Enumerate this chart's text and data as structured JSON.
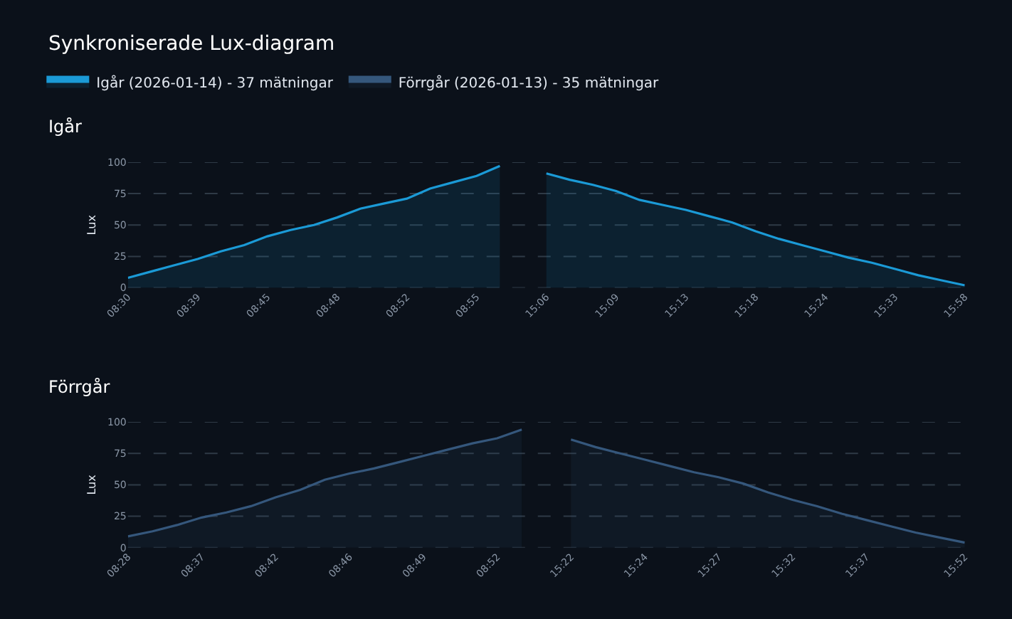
{
  "chart_data": [
    {
      "type": "area",
      "title": "Synkroniserade Lux-diagram",
      "subtitle": "Igår",
      "ylabel": "Lux",
      "categories": [
        "08:30",
        null,
        null,
        "08:39",
        null,
        null,
        "08:45",
        null,
        null,
        "08:48",
        null,
        null,
        "08:52",
        null,
        null,
        "08:55",
        null,
        null,
        "15:06",
        null,
        null,
        "15:09",
        null,
        null,
        "15:13",
        null,
        null,
        "15:18",
        null,
        null,
        "15:24",
        null,
        null,
        "15:33",
        null,
        null,
        "15:58"
      ],
      "series": [
        {
          "name": "Igår (2026-01-14) - 37 mätningar",
          "color": "#1b9ad6",
          "values": [
            8,
            13,
            18,
            23,
            29,
            34,
            41,
            46,
            50,
            56,
            63,
            67,
            71,
            79,
            84,
            89,
            97,
            null,
            91,
            86,
            82,
            77,
            70,
            66,
            62,
            57,
            52,
            45,
            39,
            34,
            29,
            24,
            20,
            15,
            10,
            6,
            2
          ]
        }
      ],
      "ylim": [
        0,
        100
      ],
      "yticks": [
        0,
        25,
        50,
        75,
        100
      ],
      "grid": "y",
      "legend": "top left",
      "line_style": "solid"
    },
    {
      "type": "area",
      "title": "Förrgår",
      "ylabel": "Lux",
      "categories": [
        "08:28",
        null,
        null,
        "08:37",
        null,
        null,
        "08:42",
        null,
        null,
        "08:46",
        null,
        null,
        "08:49",
        null,
        null,
        "08:52",
        null,
        null,
        "15:22",
        null,
        null,
        "15:24",
        null,
        null,
        "15:27",
        null,
        null,
        "15:32",
        null,
        null,
        "15:37",
        null,
        null,
        null,
        "15:52"
      ],
      "series": [
        {
          "name": "Förrgår (2026-01-13) - 35 mätningar",
          "color": "#35577c",
          "values": [
            9,
            13,
            18,
            24,
            28,
            33,
            40,
            46,
            54,
            59,
            63,
            68,
            73,
            78,
            83,
            87,
            94,
            null,
            86,
            80,
            75,
            70,
            65,
            60,
            56,
            51,
            44,
            38,
            33,
            27,
            22,
            17,
            12,
            8,
            4
          ]
        }
      ],
      "ylim": [
        0,
        100
      ],
      "yticks": [
        0,
        25,
        50,
        75,
        100
      ],
      "grid": "y",
      "line_style": "solid"
    }
  ]
}
